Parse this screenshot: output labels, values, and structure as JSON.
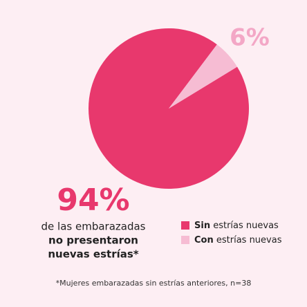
{
  "chart_data": {
    "type": "pie",
    "categories": [
      "Sin estrías nuevas",
      "Con estrías nuevas"
    ],
    "values": [
      94,
      6
    ],
    "value_labels": [
      "94%",
      "6%"
    ],
    "colors": [
      "#e8386d",
      "#f6bcd3"
    ],
    "label_colors": [
      "#e8386d",
      "#f3a7c6"
    ],
    "annotations": [
      "de las embarazadas",
      "no presentaron",
      "nuevas estrías*"
    ],
    "footnote": "*Mujeres embarazadas sin estrías anteriores, n=38"
  }
}
